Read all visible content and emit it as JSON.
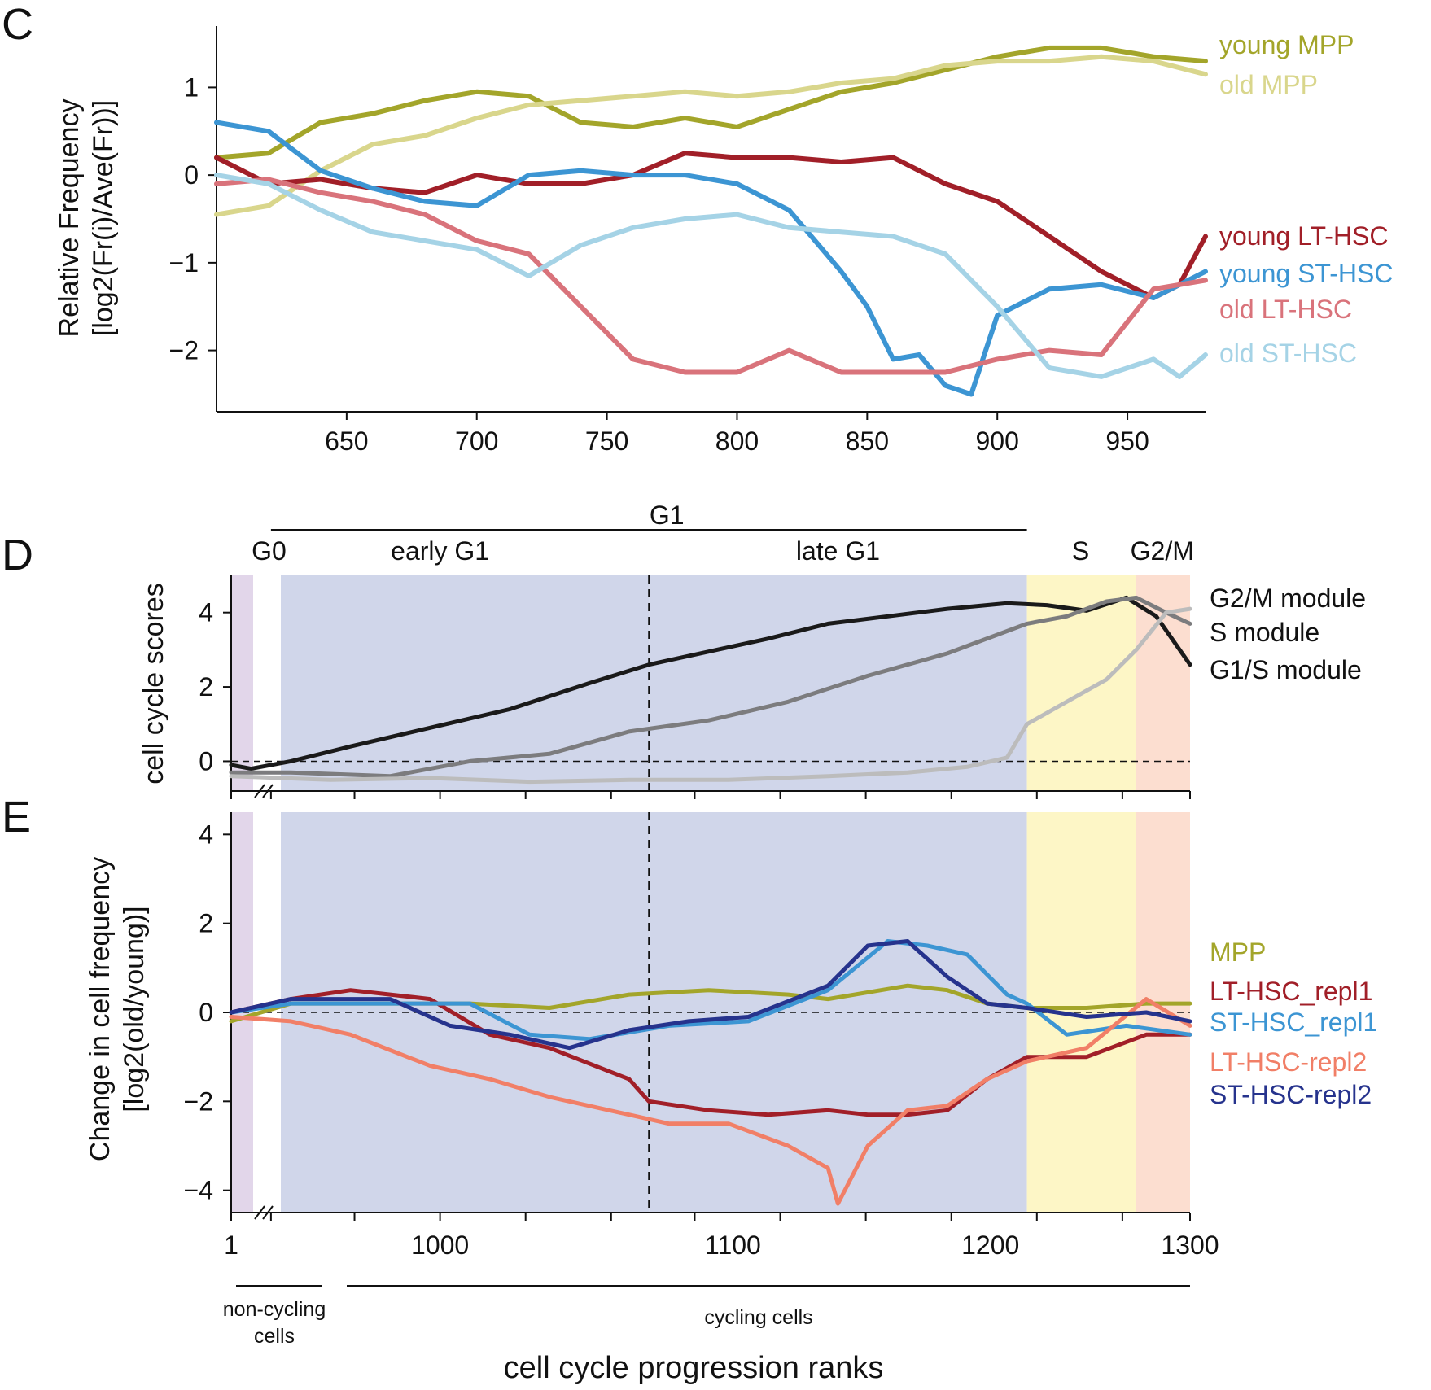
{
  "chart_data": [
    {
      "panel": "C",
      "type": "line",
      "ylabel": [
        "Relative Frequency",
        "[log2(Fr(i)/Ave(Fr))]"
      ],
      "xticks": [
        650,
        700,
        750,
        800,
        850,
        900,
        950
      ],
      "yticks": [
        1,
        0,
        -1,
        -2
      ],
      "xlim": [
        600,
        980
      ],
      "ylim": [
        -2.7,
        1.7
      ],
      "series": [
        {
          "name": "young MPP",
          "color": "#a3a52a",
          "x": [
            600,
            620,
            640,
            660,
            680,
            700,
            720,
            740,
            760,
            780,
            800,
            820,
            840,
            860,
            880,
            900,
            920,
            940,
            960,
            980
          ],
          "y": [
            0.2,
            0.25,
            0.6,
            0.7,
            0.85,
            0.95,
            0.9,
            0.6,
            0.55,
            0.65,
            0.55,
            0.75,
            0.95,
            1.05,
            1.2,
            1.35,
            1.45,
            1.45,
            1.35,
            1.3
          ]
        },
        {
          "name": "old MPP",
          "color": "#d9d68c",
          "x": [
            600,
            620,
            640,
            660,
            680,
            700,
            720,
            740,
            760,
            780,
            800,
            820,
            840,
            860,
            880,
            900,
            920,
            940,
            960,
            980
          ],
          "y": [
            -0.45,
            -0.35,
            0.05,
            0.35,
            0.45,
            0.65,
            0.8,
            0.85,
            0.9,
            0.95,
            0.9,
            0.95,
            1.05,
            1.1,
            1.25,
            1.3,
            1.3,
            1.35,
            1.3,
            1.15
          ]
        },
        {
          "name": "young LT-HSC",
          "color": "#a11f28",
          "x": [
            600,
            620,
            640,
            660,
            680,
            700,
            720,
            740,
            760,
            780,
            800,
            820,
            840,
            860,
            880,
            900,
            920,
            940,
            960,
            970,
            980
          ],
          "y": [
            0.2,
            -0.1,
            -0.05,
            -0.15,
            -0.2,
            0.0,
            -0.1,
            -0.1,
            0.0,
            0.25,
            0.2,
            0.2,
            0.15,
            0.2,
            -0.1,
            -0.3,
            -0.7,
            -1.1,
            -1.4,
            -1.25,
            -0.7
          ]
        },
        {
          "name": "young ST-HSC",
          "color": "#3c95d3",
          "x": [
            600,
            620,
            640,
            660,
            680,
            700,
            720,
            740,
            760,
            780,
            800,
            820,
            840,
            850,
            860,
            870,
            880,
            890,
            900,
            920,
            940,
            960,
            980
          ],
          "y": [
            0.6,
            0.5,
            0.05,
            -0.15,
            -0.3,
            -0.35,
            0.0,
            0.05,
            0.0,
            0.0,
            -0.1,
            -0.4,
            -1.1,
            -1.5,
            -2.1,
            -2.05,
            -2.4,
            -2.5,
            -1.6,
            -1.3,
            -1.25,
            -1.4,
            -1.1
          ]
        },
        {
          "name": "old LT-HSC",
          "color": "#d9737b",
          "x": [
            600,
            620,
            640,
            660,
            680,
            700,
            720,
            730,
            740,
            760,
            780,
            800,
            820,
            840,
            860,
            880,
            900,
            920,
            940,
            960,
            980
          ],
          "y": [
            -0.1,
            -0.05,
            -0.2,
            -0.3,
            -0.45,
            -0.75,
            -0.9,
            -1.2,
            -1.5,
            -2.1,
            -2.25,
            -2.25,
            -2.0,
            -2.25,
            -2.25,
            -2.25,
            -2.1,
            -2.0,
            -2.05,
            -1.3,
            -1.2
          ]
        },
        {
          "name": "old ST-HSC",
          "color": "#a5d3e6",
          "x": [
            600,
            620,
            640,
            660,
            680,
            700,
            720,
            740,
            760,
            780,
            800,
            820,
            840,
            860,
            880,
            900,
            920,
            940,
            960,
            970,
            980
          ],
          "y": [
            0.0,
            -0.1,
            -0.4,
            -0.65,
            -0.75,
            -0.85,
            -1.15,
            -0.8,
            -0.6,
            -0.5,
            -0.45,
            -0.6,
            -0.65,
            -0.7,
            -0.9,
            -1.5,
            -2.2,
            -2.3,
            -2.1,
            -2.3,
            -2.05
          ]
        }
      ]
    },
    {
      "panel": "D",
      "type": "line",
      "ylabel": [
        "cell cycle scores"
      ],
      "yticks": [
        4,
        2,
        0
      ],
      "ylim": [
        -0.8,
        5
      ],
      "phases": [
        {
          "label": "G0",
          "start": 0,
          "end": 0.2,
          "color": "#e2d6ea"
        },
        {
          "label": "early G1",
          "start": 0.2,
          "end": 2.1,
          "color": "#d0d6ea"
        },
        {
          "label": "late G1",
          "start": 2.1,
          "end": 4.0,
          "color": "#d0d6ea"
        },
        {
          "label": "S",
          "start": 4.0,
          "end": 4.55,
          "color": "#fdf6c6"
        },
        {
          "label": "G2/M",
          "start": 4.55,
          "end": 4.82,
          "color": "#fcded0"
        }
      ],
      "g1_label": "G1",
      "series": [
        {
          "name": "G2/M module",
          "color": "#1a1a1a",
          "x": [
            0,
            0.1,
            0.3,
            0.6,
            1.0,
            1.4,
            1.8,
            2.1,
            2.4,
            2.7,
            3.0,
            3.3,
            3.6,
            3.9,
            4.1,
            4.3,
            4.5,
            4.65,
            4.82
          ],
          "y": [
            -0.1,
            -0.2,
            0.0,
            0.4,
            0.9,
            1.4,
            2.1,
            2.6,
            2.95,
            3.3,
            3.7,
            3.9,
            4.1,
            4.25,
            4.2,
            4.05,
            4.4,
            3.9,
            2.6
          ]
        },
        {
          "name": "S module",
          "color": "#7c7c7e",
          "x": [
            0,
            0.3,
            0.8,
            1.2,
            1.6,
            2.0,
            2.4,
            2.8,
            3.2,
            3.6,
            4.0,
            4.2,
            4.4,
            4.55,
            4.7,
            4.82
          ],
          "y": [
            -0.3,
            -0.3,
            -0.4,
            0.0,
            0.2,
            0.8,
            1.1,
            1.6,
            2.3,
            2.9,
            3.7,
            3.9,
            4.3,
            4.4,
            4.0,
            3.7
          ]
        },
        {
          "name": "G1/S module",
          "color": "#bcbcbc",
          "x": [
            0,
            0.5,
            1.0,
            1.5,
            2.0,
            2.5,
            3.0,
            3.4,
            3.7,
            3.9,
            4.0,
            4.2,
            4.4,
            4.55,
            4.7,
            4.82
          ],
          "y": [
            -0.4,
            -0.5,
            -0.45,
            -0.55,
            -0.5,
            -0.5,
            -0.4,
            -0.3,
            -0.15,
            0.1,
            1.0,
            1.6,
            2.2,
            3.0,
            4.0,
            4.1
          ]
        }
      ]
    },
    {
      "panel": "E",
      "type": "line",
      "ylabel": [
        "Change in cell frequency",
        "[log2(old/young)]"
      ],
      "yticks": [
        4,
        2,
        0,
        -2,
        -4
      ],
      "ylim": [
        -4.5,
        4.5
      ],
      "xticks": [
        "1",
        "1000",
        "1100",
        "1200",
        "1300"
      ],
      "xlabel": "cell cycle progression ranks",
      "group_labels": {
        "non_cycling": [
          "non-cycling",
          "cells"
        ],
        "cycling": "cycling cells"
      },
      "series": [
        {
          "name": "MPP",
          "color": "#a3a52a",
          "x": [
            0,
            0.3,
            0.8,
            1.2,
            1.6,
            2.0,
            2.4,
            2.8,
            3.0,
            3.4,
            3.6,
            3.8,
            4.0,
            4.3,
            4.6,
            4.82
          ],
          "y": [
            -0.2,
            0.2,
            0.2,
            0.2,
            0.1,
            0.4,
            0.5,
            0.4,
            0.3,
            0.6,
            0.5,
            0.2,
            0.1,
            0.1,
            0.2,
            0.2
          ]
        },
        {
          "name": "LT-HSC_repl1",
          "color": "#a11f28",
          "x": [
            0,
            0.3,
            0.6,
            1.0,
            1.3,
            1.6,
            2.0,
            2.1,
            2.4,
            2.7,
            3.0,
            3.2,
            3.4,
            3.6,
            3.8,
            4.0,
            4.3,
            4.6,
            4.82
          ],
          "y": [
            0.0,
            0.3,
            0.5,
            0.3,
            -0.5,
            -0.8,
            -1.5,
            -2.0,
            -2.2,
            -2.3,
            -2.2,
            -2.3,
            -2.3,
            -2.2,
            -1.5,
            -1.0,
            -1.0,
            -0.5,
            -0.5
          ]
        },
        {
          "name": "ST-HSC_repl1",
          "color": "#3c95d3",
          "x": [
            0,
            0.3,
            0.8,
            1.2,
            1.5,
            1.8,
            2.2,
            2.6,
            3.0,
            3.3,
            3.5,
            3.7,
            3.9,
            4.0,
            4.2,
            4.5,
            4.82
          ],
          "y": [
            0.0,
            0.2,
            0.2,
            0.2,
            -0.5,
            -0.6,
            -0.3,
            -0.2,
            0.5,
            1.6,
            1.5,
            1.3,
            0.4,
            0.2,
            -0.5,
            -0.3,
            -0.5
          ]
        },
        {
          "name": "LT-HSC-repl2",
          "color": "#f17f67",
          "x": [
            0,
            0.3,
            0.6,
            1.0,
            1.3,
            1.6,
            2.0,
            2.2,
            2.5,
            2.8,
            3.0,
            3.05,
            3.2,
            3.4,
            3.6,
            3.8,
            4.0,
            4.3,
            4.6,
            4.82
          ],
          "y": [
            -0.1,
            -0.2,
            -0.5,
            -1.2,
            -1.5,
            -1.9,
            -2.3,
            -2.5,
            -2.5,
            -3.0,
            -3.5,
            -4.3,
            -3.0,
            -2.2,
            -2.1,
            -1.5,
            -1.1,
            -0.8,
            0.3,
            -0.3
          ]
        },
        {
          "name": "ST-HSC-repl2",
          "color": "#26338d",
          "x": [
            0,
            0.3,
            0.8,
            1.1,
            1.4,
            1.7,
            2.0,
            2.3,
            2.6,
            3.0,
            3.2,
            3.4,
            3.6,
            3.8,
            4.0,
            4.3,
            4.6,
            4.82
          ],
          "y": [
            0.0,
            0.3,
            0.3,
            -0.3,
            -0.5,
            -0.8,
            -0.4,
            -0.2,
            -0.1,
            0.6,
            1.5,
            1.6,
            0.8,
            0.2,
            0.1,
            -0.1,
            0.0,
            -0.2
          ]
        }
      ]
    }
  ]
}
